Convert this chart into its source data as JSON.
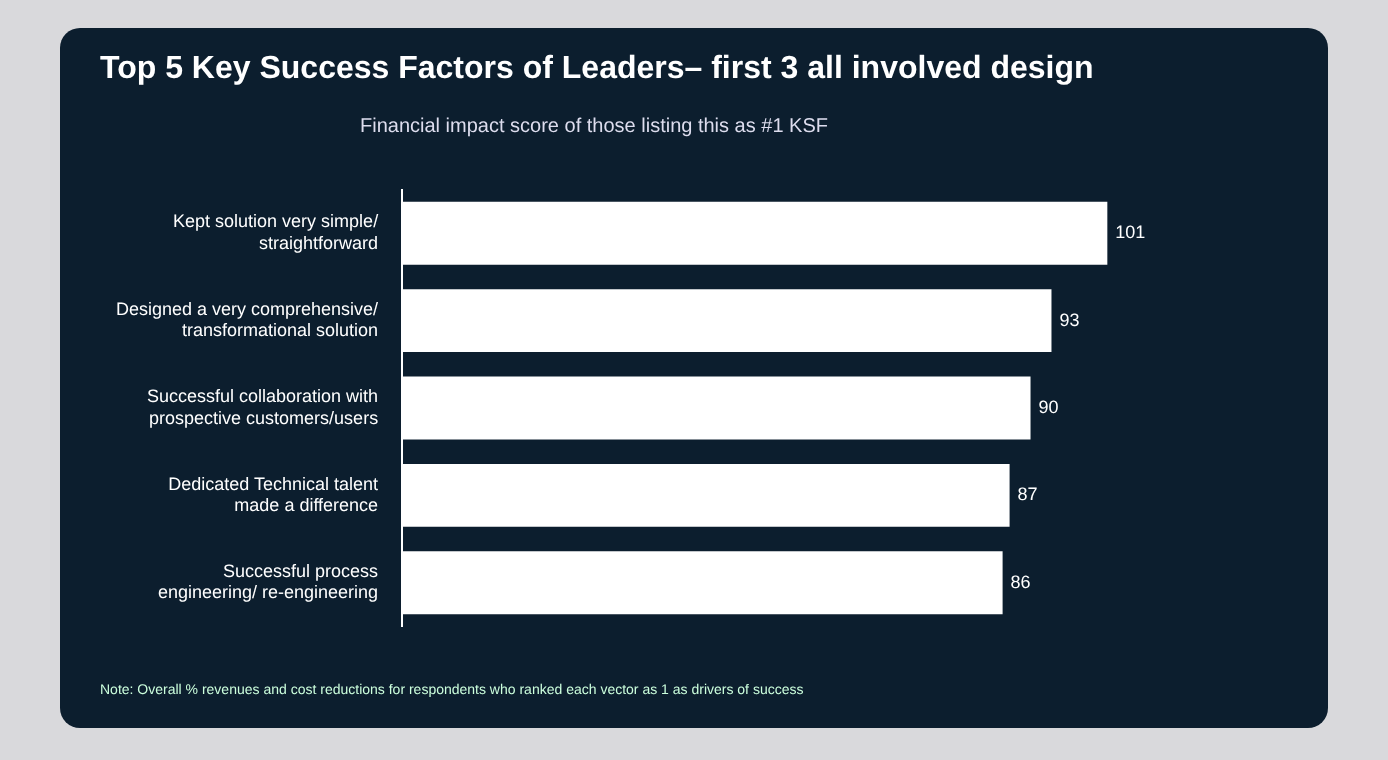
{
  "chart_data": {
    "type": "bar",
    "orientation": "horizontal",
    "title": "Top 5 Key Success Factors of Leaders– first 3 all involved design",
    "subtitle": "Financial impact score of those listing this as #1 KSF",
    "categories": [
      "Kept solution very simple/ straightforward",
      "Designed a very comprehensive/ transformational solution",
      "Successful collaboration with prospective customers/users",
      "Dedicated Technical talent made a difference",
      "Successful process engineering/ re-engineering"
    ],
    "values": [
      101,
      93,
      90,
      87,
      86
    ],
    "color": "#ffffff",
    "data_labels": true,
    "legend": false,
    "annotations": [
      "Note: Overall % revenues and cost reductions for respondents who ranked each vector as 1 as drivers of success"
    ]
  }
}
